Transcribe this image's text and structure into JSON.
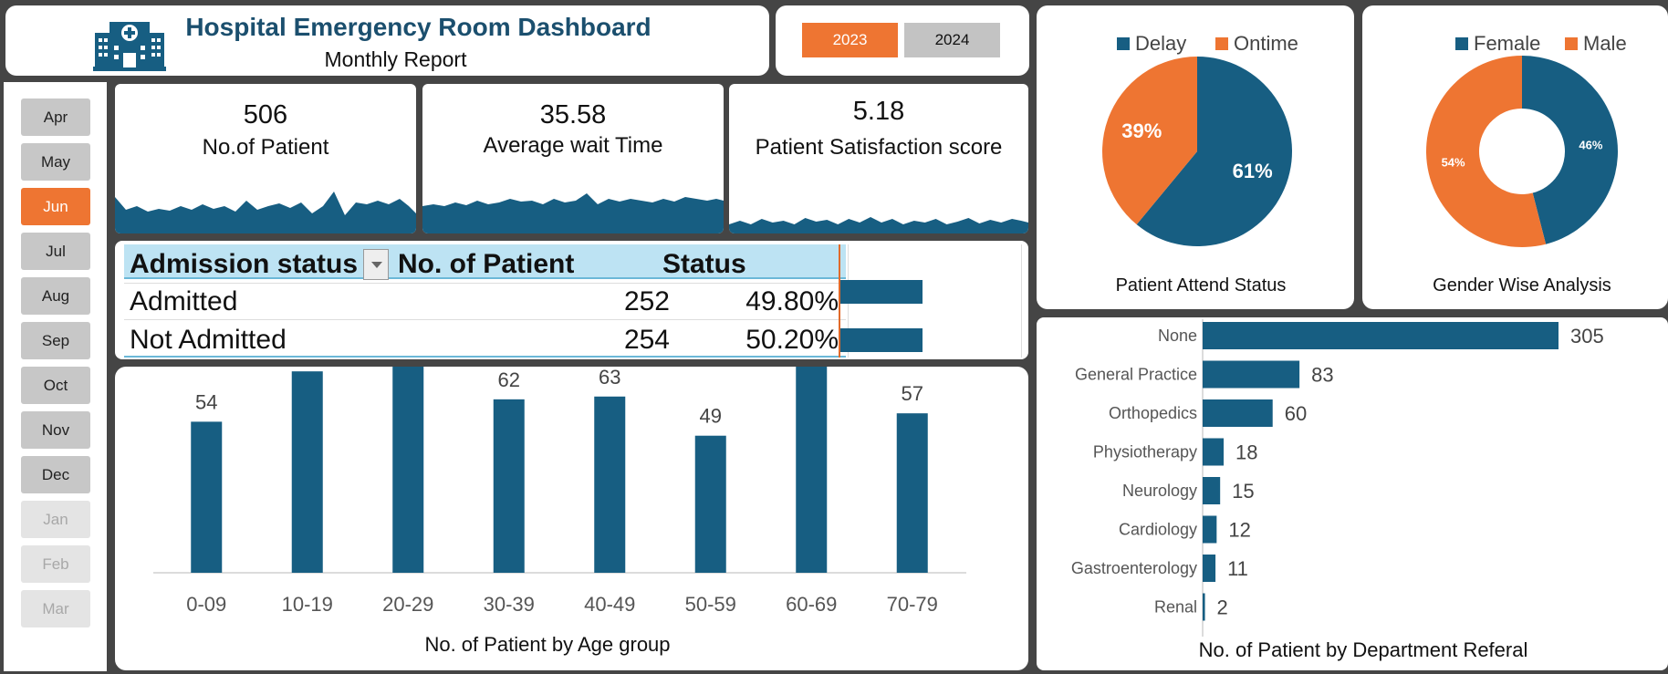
{
  "header": {
    "title": "Hospital Emergency Room Dashboard",
    "subtitle": "Monthly Report"
  },
  "years": [
    {
      "label": "2023",
      "selected": true
    },
    {
      "label": "2024",
      "selected": false
    }
  ],
  "months": [
    {
      "label": "Apr",
      "state": "normal"
    },
    {
      "label": "May",
      "state": "normal"
    },
    {
      "label": "Jun",
      "state": "active"
    },
    {
      "label": "Jul",
      "state": "normal"
    },
    {
      "label": "Aug",
      "state": "normal"
    },
    {
      "label": "Sep",
      "state": "normal"
    },
    {
      "label": "Oct",
      "state": "normal"
    },
    {
      "label": "Nov",
      "state": "normal"
    },
    {
      "label": "Dec",
      "state": "normal"
    },
    {
      "label": "Jan",
      "state": "disabled"
    },
    {
      "label": "Feb",
      "state": "disabled"
    },
    {
      "label": "Mar",
      "state": "disabled"
    }
  ],
  "kpis": {
    "patients": {
      "value": "506",
      "label": "No.of Patient"
    },
    "wait": {
      "value": "35.58",
      "label": "Average wait Time"
    },
    "satisfaction": {
      "value": "5.18",
      "label": "Patient Satisfaction score"
    }
  },
  "admission": {
    "headers": [
      "Admission status",
      "No. of Patient",
      "Status"
    ],
    "rows": [
      {
        "status": "Admitted",
        "count": "252",
        "pct": "49.80%",
        "fraction": 0.498
      },
      {
        "status": "Not Admitted",
        "count": "254",
        "pct": "50.20%",
        "fraction": 0.502
      }
    ]
  },
  "colors": {
    "accent": "#ee7532",
    "primary": "#175e82",
    "header_blue": "#bde3f3"
  },
  "chart_data": [
    {
      "type": "bar",
      "title": "No. of Patient by Age group",
      "categories": [
        "0-09",
        "10-19",
        "20-29",
        "30-39",
        "40-49",
        "50-59",
        "60-69",
        "70-79"
      ],
      "values": [
        54,
        72,
        75,
        62,
        63,
        49,
        74,
        57
      ],
      "ylim": [
        0,
        90
      ],
      "grid": false
    },
    {
      "type": "pie",
      "title": "Patient Attend Status",
      "categories": [
        "Delay",
        "Ontime"
      ],
      "values": [
        61,
        39
      ],
      "labels": [
        "61%",
        "39%"
      ],
      "legend": "top"
    },
    {
      "type": "pie",
      "title": "Gender Wise Analysis",
      "categories": [
        "Female",
        "Male"
      ],
      "values": [
        46,
        54
      ],
      "labels": [
        "46%",
        "54%"
      ],
      "legend": "top"
    },
    {
      "type": "bar",
      "title": "No. of Patient by Department Referal",
      "orientation": "horizontal",
      "categories": [
        "None",
        "General Practice",
        "Orthopedics",
        "Physiotherapy",
        "Neurology",
        "Cardiology",
        "Gastroenterology",
        "Renal"
      ],
      "values": [
        305,
        83,
        60,
        18,
        15,
        12,
        11,
        2
      ],
      "xlim": [
        0,
        305
      ],
      "grid": false
    }
  ]
}
